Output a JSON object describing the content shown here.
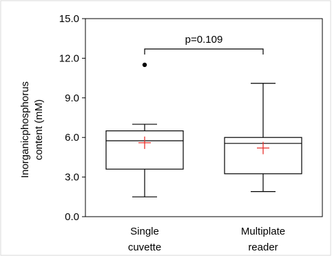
{
  "chart_data": {
    "type": "boxplot",
    "title": "",
    "xlabel": "",
    "ylabel_line1": "Inorganicphosphorus",
    "ylabel_line2": "content (mM)",
    "ylim": [
      0.0,
      15.0
    ],
    "yticks": [
      "0.0",
      "3.0",
      "6.0",
      "9.0",
      "12.0",
      "15.0"
    ],
    "categories": [
      {
        "line1": "Single",
        "line2": "cuvette"
      },
      {
        "line1": "Multiplate",
        "line2": "reader"
      }
    ],
    "boxes": [
      {
        "whisker_low": 1.5,
        "q1": 3.6,
        "median": 5.75,
        "mean": 5.6,
        "q3": 6.5,
        "whisker_high": 7.0,
        "outliers": [
          11.5
        ]
      },
      {
        "whisker_low": 1.9,
        "q1": 3.25,
        "median": 5.55,
        "mean": 5.2,
        "q3": 6.0,
        "whisker_high": 10.1,
        "outliers": []
      }
    ],
    "annotation": {
      "text": "p=0.109"
    },
    "grid": false,
    "mean_marker_color": "#e8302b",
    "line_color": "#000000"
  }
}
